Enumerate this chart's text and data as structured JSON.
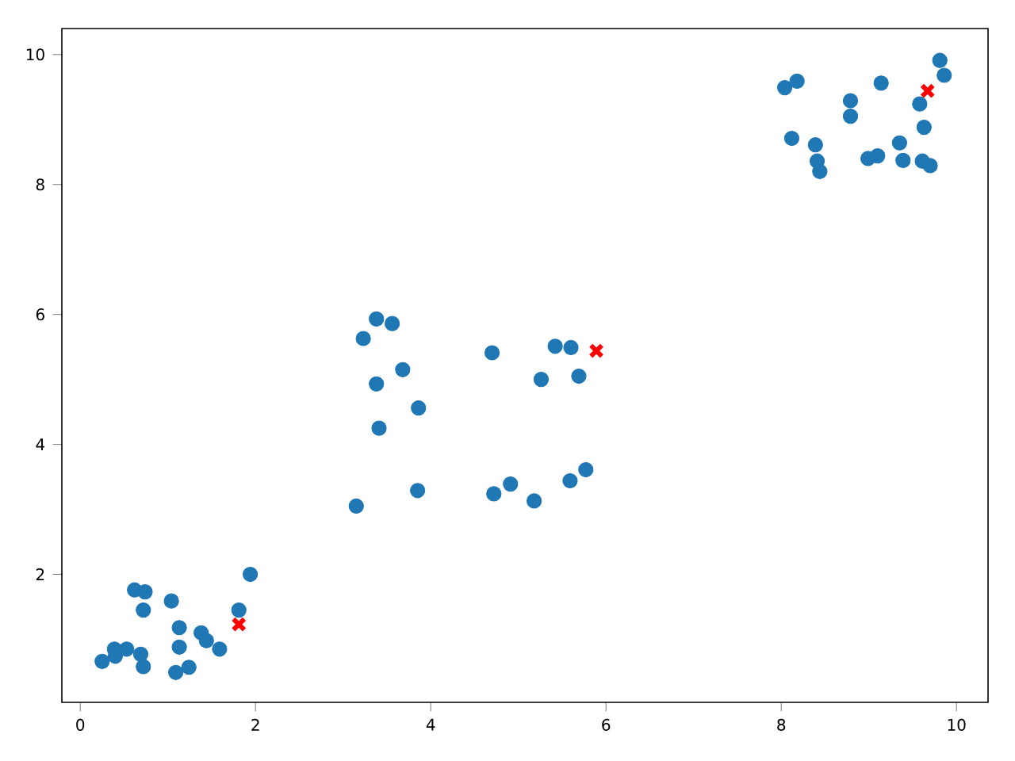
{
  "chart_data": {
    "type": "scatter",
    "xlim": [
      -0.21,
      10.36
    ],
    "ylim": [
      0.03,
      10.4
    ],
    "xticks": [
      0,
      2,
      4,
      6,
      8,
      10
    ],
    "yticks": [
      2,
      4,
      6,
      8,
      10
    ],
    "grid": false,
    "series": [
      {
        "color": "#1f77b4",
        "marker": "circle",
        "x": [
          0.25,
          0.39,
          0.4,
          0.53,
          0.62,
          0.74,
          0.72,
          0.69,
          0.72,
          1.04,
          1.13,
          1.13,
          1.09,
          1.24,
          1.38,
          1.44,
          1.59,
          1.81,
          1.94,
          3.38,
          3.56,
          3.23,
          3.68,
          3.38,
          3.86,
          3.41,
          3.85,
          3.15,
          4.7,
          5.42,
          5.6,
          5.26,
          5.69,
          4.72,
          4.91,
          5.18,
          5.59,
          5.77,
          8.04,
          8.18,
          9.14,
          9.81,
          9.86,
          9.58,
          8.79,
          8.79,
          9.63,
          8.12,
          8.39,
          9.35,
          8.41,
          8.44,
          8.99,
          9.1,
          9.39,
          9.61,
          9.7
        ],
        "values": [
          0.66,
          0.85,
          0.74,
          0.85,
          1.76,
          1.73,
          1.45,
          0.77,
          0.58,
          1.59,
          1.18,
          0.88,
          0.49,
          0.57,
          1.1,
          0.98,
          0.85,
          1.45,
          2.0,
          5.93,
          5.86,
          5.63,
          5.15,
          4.93,
          4.56,
          4.25,
          3.29,
          3.05,
          5.41,
          5.51,
          5.49,
          5.0,
          5.05,
          3.24,
          3.39,
          3.13,
          3.44,
          3.61,
          9.49,
          9.59,
          9.56,
          9.91,
          9.68,
          9.24,
          9.29,
          9.05,
          8.88,
          8.71,
          8.61,
          8.64,
          8.36,
          8.2,
          8.4,
          8.44,
          8.37,
          8.36,
          8.29
        ]
      },
      {
        "color": "#ff0000",
        "marker": "cross",
        "x": [
          1.81,
          5.89,
          9.67
        ],
        "values": [
          1.23,
          5.44,
          9.44
        ]
      }
    ]
  }
}
